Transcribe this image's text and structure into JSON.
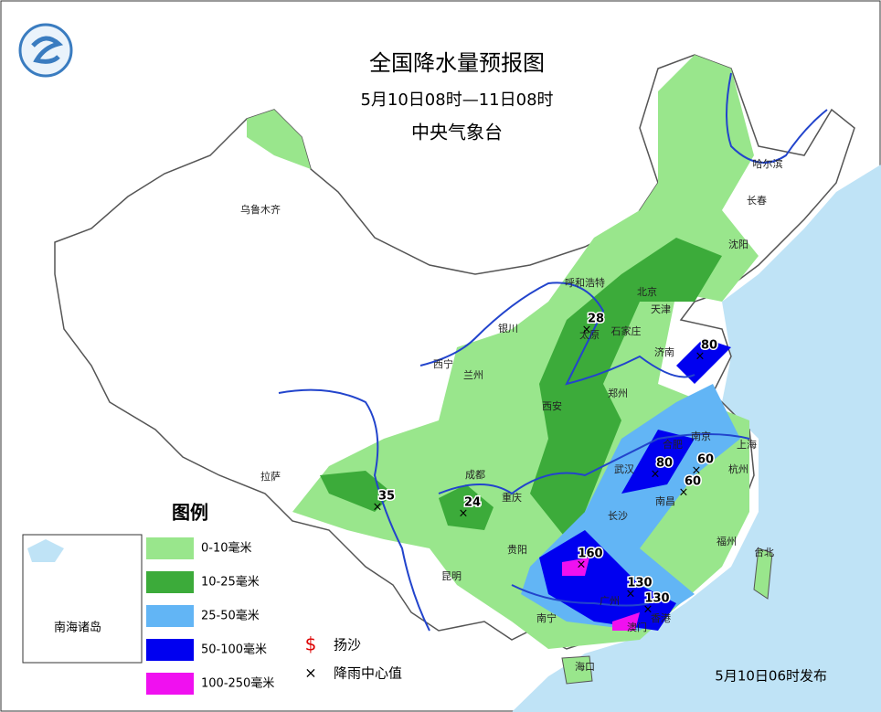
{
  "header": {
    "title": "全国降水量预报图",
    "period": "5月10日08时—11日08时",
    "issuer": "中央气象台"
  },
  "legend": {
    "title": "图例",
    "items": [
      {
        "label": "0-10毫米",
        "color": "#99e68c"
      },
      {
        "label": "10-25毫米",
        "color": "#3cab3a"
      },
      {
        "label": "25-50毫米",
        "color": "#62b5f5"
      },
      {
        "label": "50-100毫米",
        "color": "#0000f0"
      },
      {
        "label": "100-250毫米",
        "color": "#f010f0"
      }
    ],
    "symbols": [
      {
        "label": "扬沙"
      },
      {
        "label": "降雨中心值"
      }
    ]
  },
  "cities": [
    "乌鲁木齐",
    "哈尔滨",
    "长春",
    "沈阳",
    "呼和浩特",
    "北京",
    "天津",
    "石家庄",
    "太原",
    "银川",
    "西宁",
    "兰州",
    "济南",
    "郑州",
    "西安",
    "南京",
    "上海",
    "合肥",
    "杭州",
    "武汉",
    "成都",
    "重庆",
    "南昌",
    "长沙",
    "拉萨",
    "贵阳",
    "福州",
    "台北",
    "昆明",
    "南宁",
    "广州",
    "香港",
    "澳门",
    "海口"
  ],
  "maxima": [
    28,
    80,
    80,
    60,
    60,
    24,
    35,
    160,
    130,
    130
  ],
  "inset": {
    "label": "南海诸岛"
  },
  "footer": {
    "release": "5月10日06时发布"
  }
}
